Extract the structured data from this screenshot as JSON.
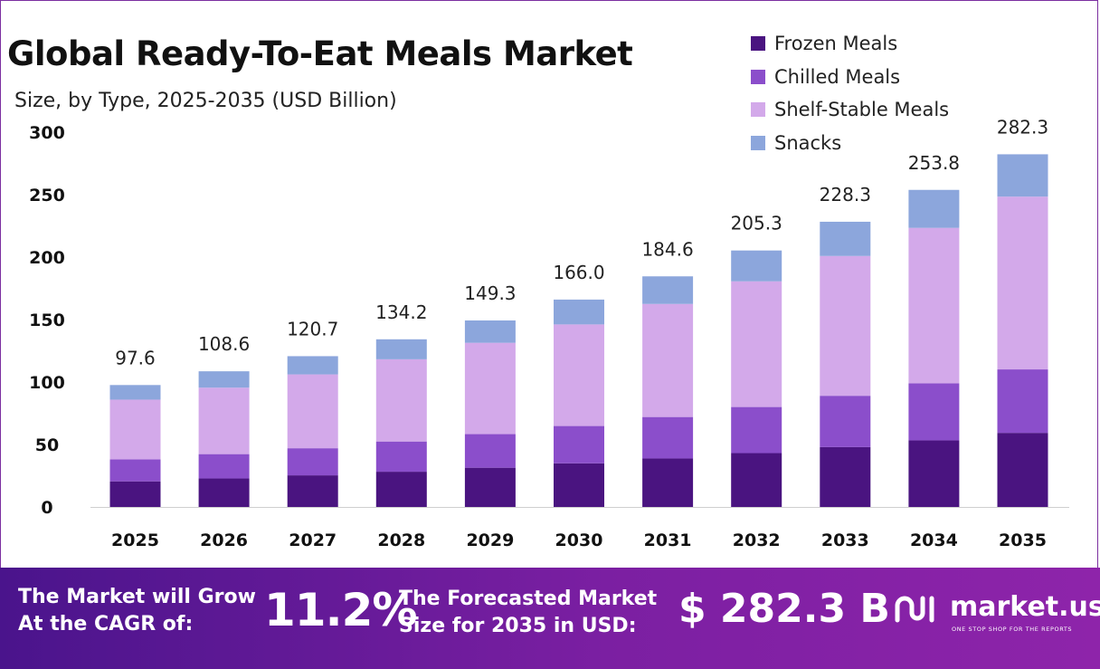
{
  "title": "Global Ready-To-Eat Meals Market",
  "subtitle": "Size, by Type, 2025-2035 (USD Billion)",
  "colors": {
    "frozen": "#4a1480",
    "chilled": "#8b4ecb",
    "shelf_stable": "#d3a9ea",
    "snacks": "#8ca6dc"
  },
  "legend": [
    {
      "label": "Frozen Meals",
      "color": "#4a1480"
    },
    {
      "label": "Chilled Meals",
      "color": "#8b4ecb"
    },
    {
      "label": "Shelf-Stable Meals",
      "color": "#d3a9ea"
    },
    {
      "label": "Snacks",
      "color": "#8ca6dc"
    }
  ],
  "chart_data": {
    "type": "bar",
    "stacked": true,
    "title": "Global Ready-To-Eat Meals Market",
    "subtitle": "Size, by Type, 2025-2035 (USD Billion)",
    "categories": [
      "2025",
      "2026",
      "2027",
      "2028",
      "2029",
      "2030",
      "2031",
      "2032",
      "2033",
      "2034",
      "2035"
    ],
    "series": [
      {
        "name": "Frozen Meals",
        "color": "#4a1480",
        "values": [
          20.5,
          22.8,
          25.3,
          28.2,
          31.4,
          34.9,
          38.8,
          43.1,
          47.9,
          53.3,
          59.3
        ]
      },
      {
        "name": "Chilled Meals",
        "color": "#8b4ecb",
        "values": [
          17.6,
          19.5,
          21.7,
          24.2,
          26.9,
          29.9,
          33.2,
          36.9,
          41.1,
          45.7,
          50.8
        ]
      },
      {
        "name": "Shelf-Stable Meals",
        "color": "#d3a9ea",
        "values": [
          47.8,
          53.2,
          59.1,
          65.8,
          73.1,
          81.3,
          90.5,
          100.6,
          111.9,
          124.4,
          138.3
        ]
      },
      {
        "name": "Snacks",
        "color": "#8ca6dc",
        "values": [
          11.7,
          13.1,
          14.6,
          16.0,
          17.9,
          19.9,
          22.1,
          24.7,
          27.4,
          30.4,
          33.9
        ]
      }
    ],
    "totals": [
      "97.6",
      "108.6",
      "120.7",
      "134.2",
      "149.3",
      "166.0",
      "184.6",
      "205.3",
      "228.3",
      "253.8",
      "282.3"
    ],
    "ylim": [
      0,
      300
    ],
    "yticks": [
      0,
      50,
      100,
      150,
      200,
      250,
      300
    ],
    "grid": false,
    "legend_position": "top-right"
  },
  "banner": {
    "cagr_label_line1": "The Market will Grow",
    "cagr_label_line2": "At the CAGR of:",
    "cagr_value": "11.2%",
    "forecast_label_line1": "The Forecasted Market",
    "forecast_label_line2": "Size for 2035 in USD:",
    "forecast_value": "$ 282.3 B",
    "brand_name": "market.us",
    "brand_tagline": "ONE STOP SHOP FOR THE REPORTS"
  }
}
